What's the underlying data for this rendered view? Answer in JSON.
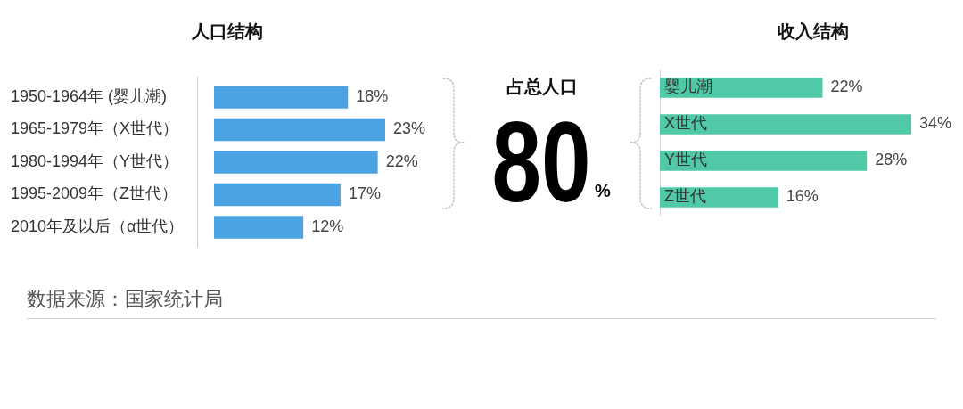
{
  "chart_data": [
    {
      "type": "bar",
      "orientation": "horizontal",
      "title": "人口结构",
      "categories": [
        "1950-1964年 (婴儿潮)",
        "1965-1979年（X世代）",
        "1980-1994年（Y世代）",
        "1995-2009年（Z世代）",
        "2010年及以后（α世代）"
      ],
      "values": [
        18,
        23,
        22,
        17,
        12
      ],
      "value_labels": [
        "18%",
        "23%",
        "22%",
        "17%",
        "12%"
      ],
      "color": "#4ca3e3",
      "annotations": [
        "数据来源：国家统计局"
      ]
    },
    {
      "type": "other",
      "title": "占总人口",
      "annotations": [
        "80",
        "%"
      ]
    },
    {
      "type": "bar",
      "orientation": "horizontal",
      "title": "收入结构",
      "categories": [
        "婴儿潮",
        "X世代",
        "Y世代",
        "Z世代"
      ],
      "values": [
        22,
        34,
        28,
        16
      ],
      "value_labels": [
        "22%",
        "34%",
        "28%",
        "16%"
      ],
      "color": "#4fc9a8"
    }
  ]
}
